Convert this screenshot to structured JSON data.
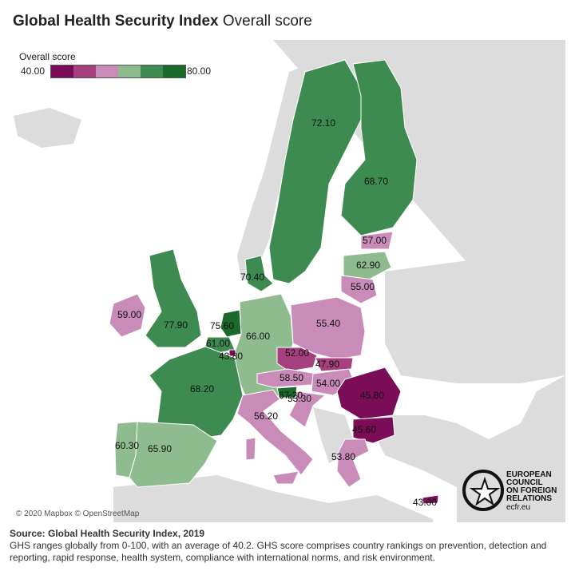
{
  "title": {
    "bold": "Global Health Security Index",
    "rest": "Overall score"
  },
  "legend": {
    "title": "Overall score",
    "min": "40.00",
    "max": "80.00",
    "colors": [
      "#7b0d58",
      "#a7407f",
      "#c98cb8",
      "#8fbc8f",
      "#3d8b50",
      "#1a6b2b"
    ]
  },
  "scores": {
    "sweden": "72.10",
    "finland": "68.70",
    "estonia": "57.00",
    "latvia": "62.90",
    "lithuania": "55.00",
    "denmark": "70.40",
    "ireland": "59.00",
    "uk": "77.90",
    "netherlands": "75.60",
    "belgium": "61.00",
    "luxembourg": "43.80",
    "germany": "66.00",
    "poland": "55.40",
    "czechia": "52.00",
    "slovakia": "47.90",
    "austria": "58.50",
    "hungary": "54.00",
    "slovenia": "67.20",
    "croatia": "53.30",
    "romania": "45.80",
    "bulgaria": "45.60",
    "france": "68.20",
    "italy": "56.20",
    "portugal": "60.30",
    "spain": "65.90",
    "greece": "53.80",
    "cyprus": "43.00"
  },
  "attribution": "© 2020 Mapbox © OpenStreetMap",
  "logo": {
    "lines": [
      "EUROPEAN",
      "COUNCIL",
      "ON FOREIGN",
      "RELATIONS"
    ],
    "url": "ecfr.eu"
  },
  "source": "Source: Global Health Security Index, 2019",
  "note": "GHS ranges globally from 0-100, with an average of 40.2. GHS score comprises country rankings on prevention, detection and reporting, rapid response, health system, compliance with international norms, and risk environment."
}
